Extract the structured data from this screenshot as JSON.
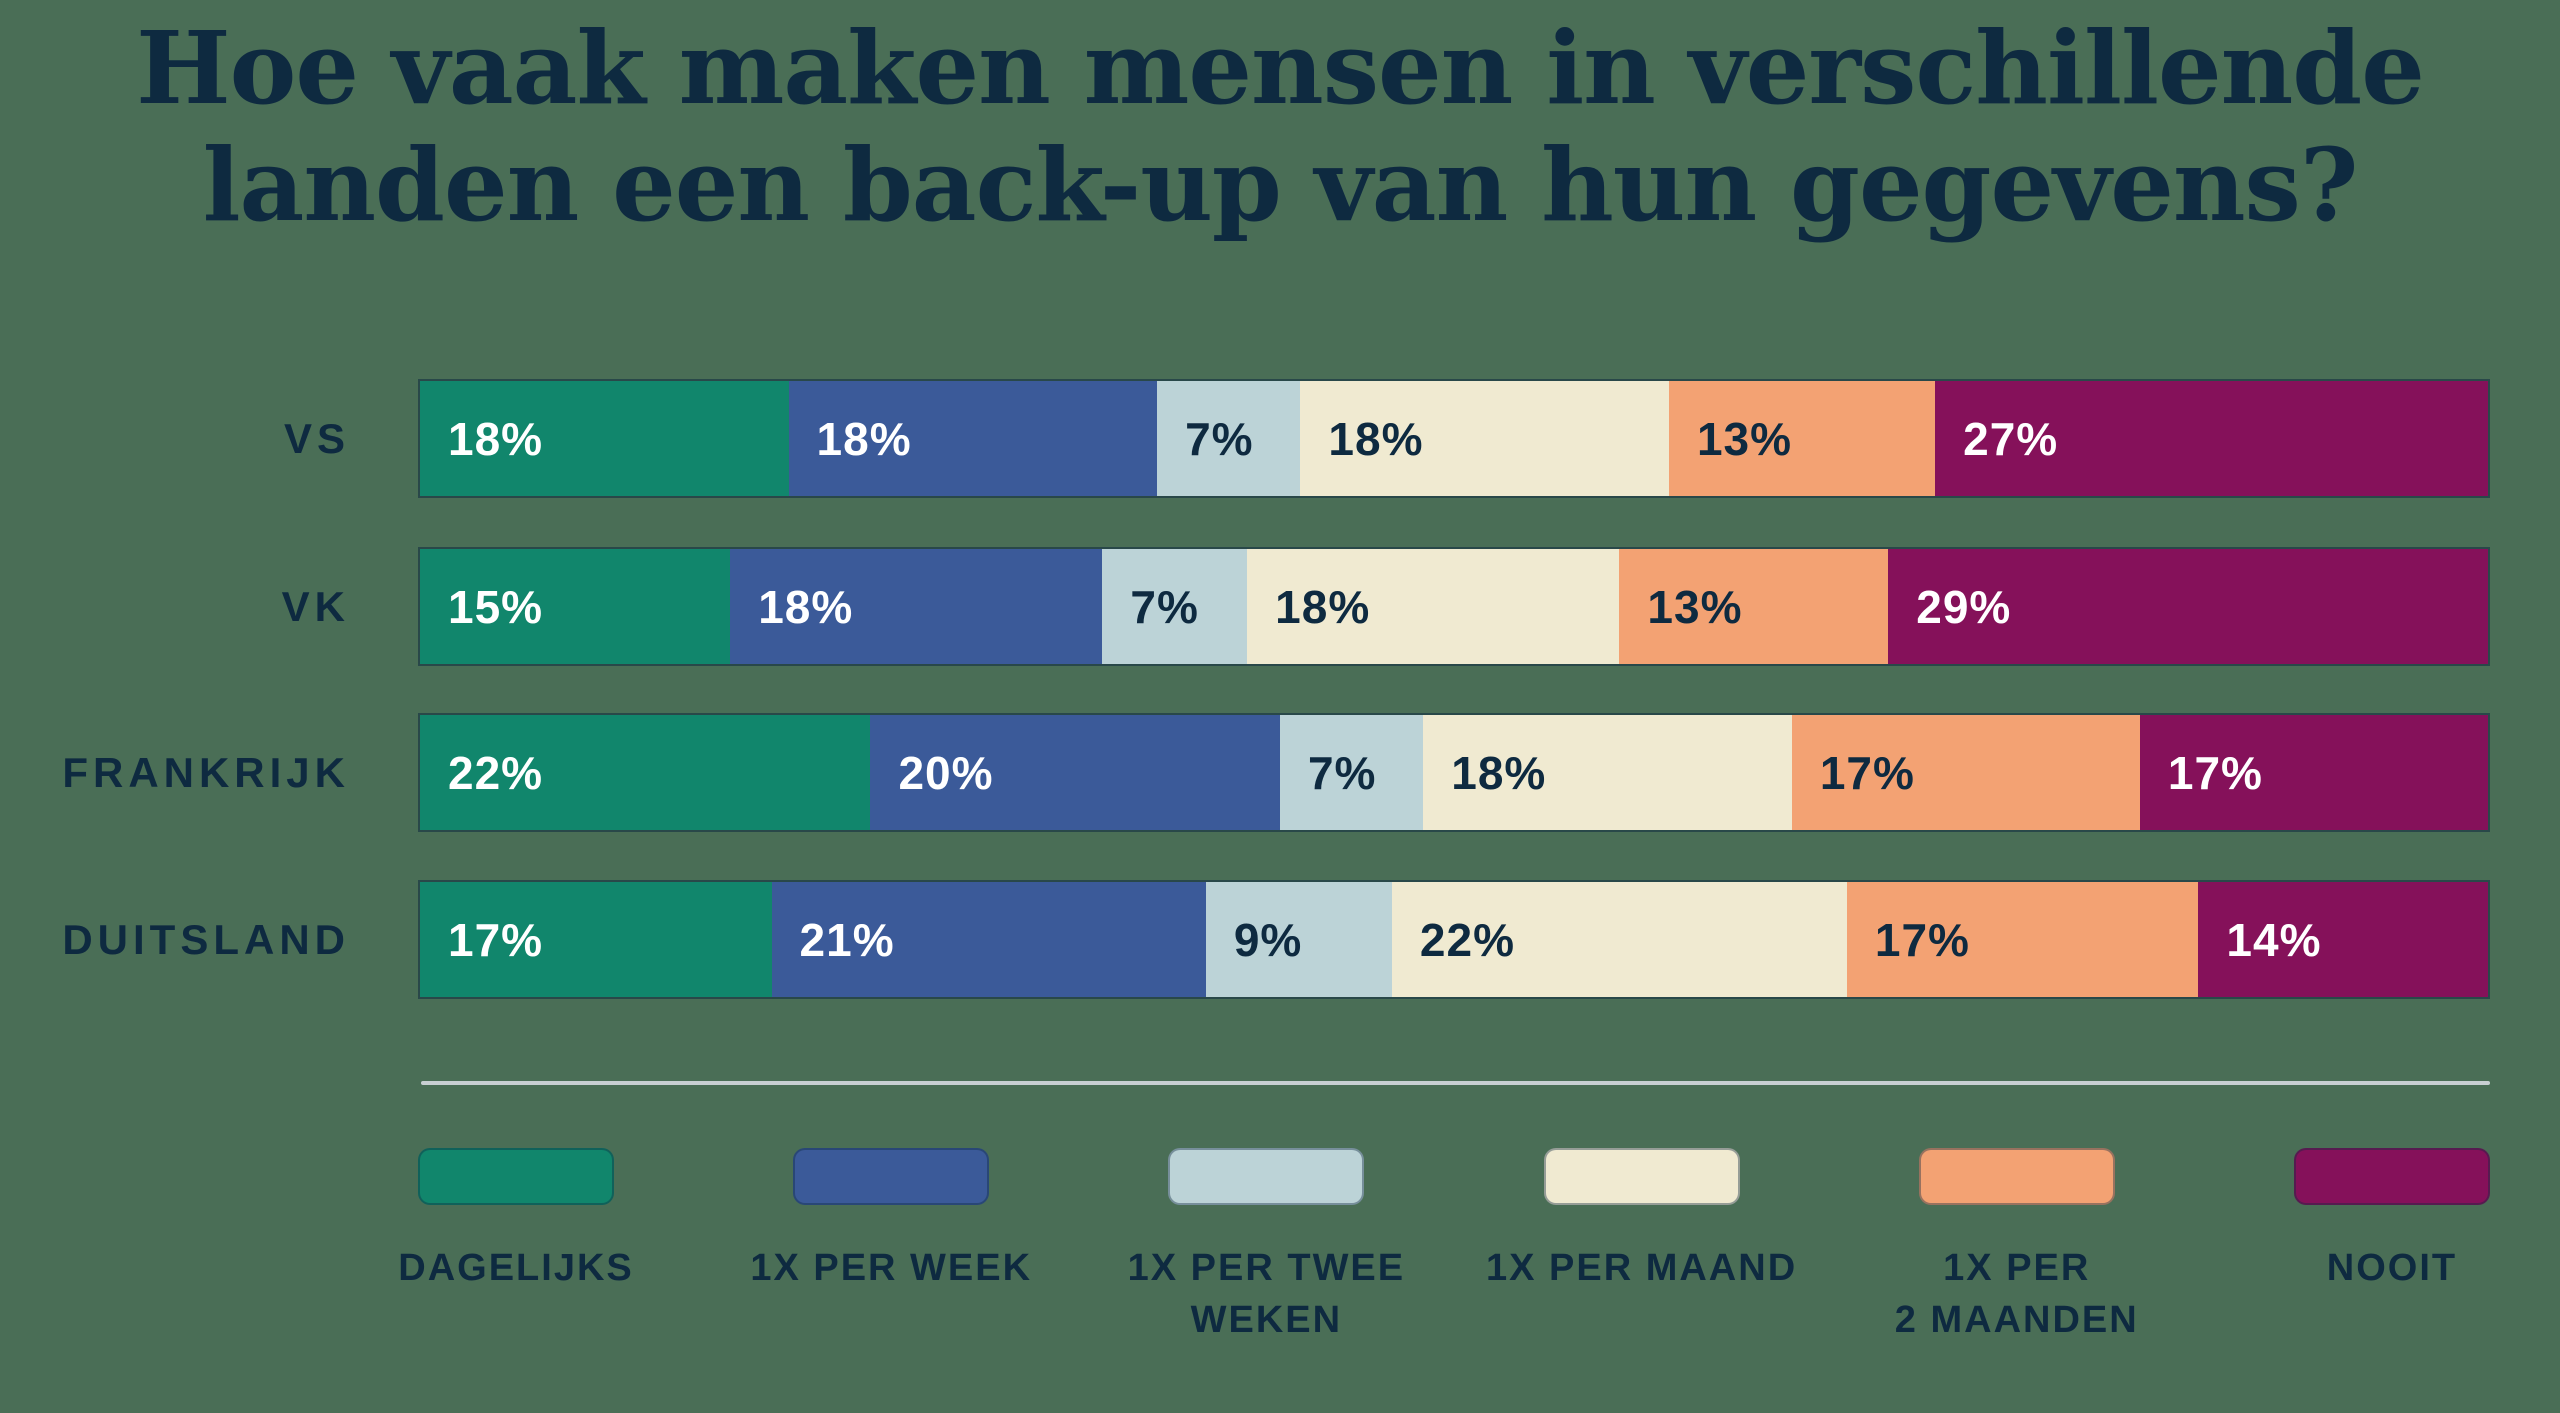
{
  "title": "Hoe vaak maken mensen in verschillende\nlanden een back-up van hun gegevens?",
  "colors": {
    "background": "#4A6E56",
    "title_text": "#0E2A40",
    "divider": "#C8CFD2",
    "bar_border": "rgba(14,42,64,0.55)",
    "swatch_border": "rgba(14,42,64,0.4)",
    "label_on_dark": "#FFFFFF",
    "label_on_light": "#0E2A40"
  },
  "chart_data": {
    "type": "bar",
    "stacked": true,
    "orientation": "horizontal",
    "value_suffix": "%",
    "legend_position": "bottom",
    "grid": false,
    "categories": [
      "VS",
      "VK",
      "FRANKRIJK",
      "DUITSLAND"
    ],
    "series": [
      {
        "name": "DAGELIJKS",
        "legend_label": "DAGELIJKS",
        "color": "#11866C",
        "text": "light",
        "values": [
          18,
          15,
          22,
          17
        ]
      },
      {
        "name": "1X PER WEEK",
        "legend_label": "1X PER WEEK",
        "color": "#3B5A99",
        "text": "light",
        "values": [
          18,
          18,
          20,
          21
        ]
      },
      {
        "name": "1X PER TWEE WEKEN",
        "legend_label": "1X PER TWEE\nWEKEN",
        "color": "#BCD3D7",
        "text": "dark",
        "values": [
          7,
          7,
          7,
          9
        ]
      },
      {
        "name": "1X PER MAAND",
        "legend_label": "1X PER MAAND",
        "color": "#F0EAD1",
        "text": "dark",
        "values": [
          18,
          18,
          18,
          22
        ]
      },
      {
        "name": "1X PER 2 MAANDEN",
        "legend_label": "1X PER\n2 MAANDEN",
        "color": "#F3A273",
        "text": "dark",
        "values": [
          13,
          13,
          17,
          17
        ]
      },
      {
        "name": "NOOIT",
        "legend_label": "NOOIT",
        "color": "#85115A",
        "text": "light",
        "values": [
          27,
          29,
          17,
          14
        ]
      }
    ]
  }
}
